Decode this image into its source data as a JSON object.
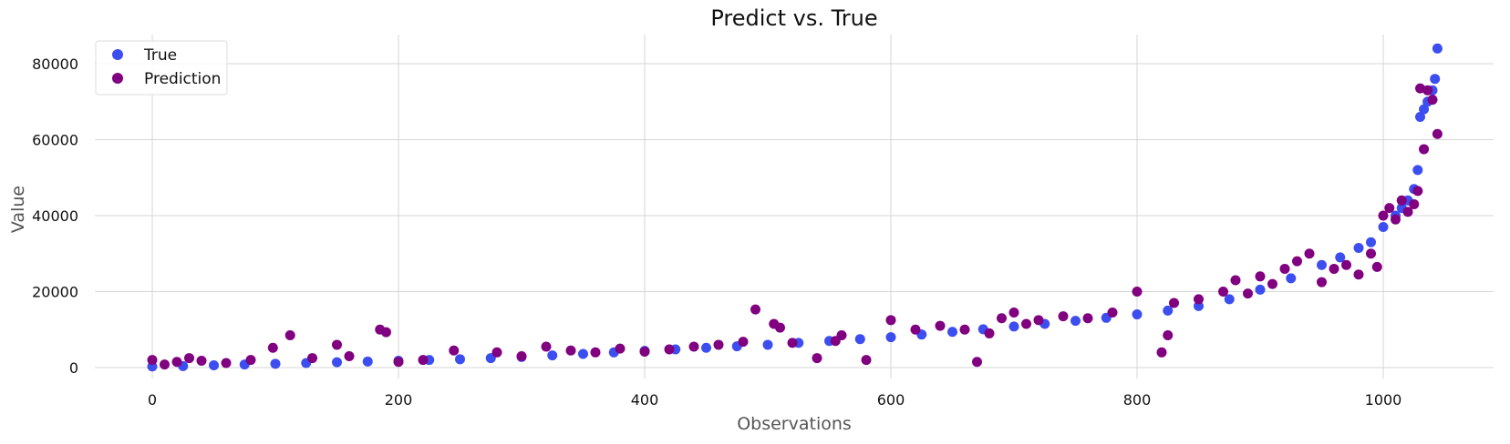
{
  "chart_data": {
    "type": "scatter",
    "title": "Predict vs. True",
    "xlabel": "Observations",
    "ylabel": "Value",
    "xlim": [
      -52,
      1094
    ],
    "ylim": [
      -3000,
      88000
    ],
    "x_ticks": [
      0,
      200,
      400,
      600,
      800,
      1000
    ],
    "y_ticks": [
      0,
      20000,
      40000,
      60000,
      80000
    ],
    "grid": true,
    "legend_position": "top-left",
    "series": [
      {
        "name": "True",
        "color": "#3c4ef0",
        "x": [
          0,
          25,
          50,
          75,
          100,
          125,
          150,
          175,
          200,
          225,
          250,
          275,
          300,
          325,
          350,
          375,
          400,
          425,
          450,
          475,
          500,
          525,
          550,
          575,
          600,
          625,
          650,
          675,
          700,
          725,
          750,
          775,
          800,
          825,
          850,
          875,
          900,
          925,
          950,
          965,
          980,
          990,
          1000,
          1010,
          1015,
          1020,
          1025,
          1028,
          1030,
          1033,
          1036,
          1040,
          1042,
          1044
        ],
        "y": [
          300,
          400,
          600,
          800,
          1000,
          1200,
          1400,
          1600,
          1800,
          2000,
          2200,
          2500,
          2800,
          3200,
          3600,
          4000,
          4400,
          4800,
          5200,
          5600,
          6000,
          6500,
          7000,
          7500,
          8000,
          8700,
          9400,
          10100,
          10800,
          11500,
          12300,
          13100,
          14000,
          15000,
          16200,
          18000,
          20500,
          23500,
          27000,
          29000,
          31500,
          33000,
          37000,
          40000,
          42000,
          44000,
          47000,
          52000,
          66000,
          68000,
          70000,
          73000,
          76000,
          84000
        ]
      },
      {
        "name": "Prediction",
        "color": "#800080",
        "x": [
          0,
          10,
          20,
          30,
          40,
          60,
          80,
          98,
          112,
          130,
          150,
          160,
          185,
          190,
          200,
          220,
          245,
          280,
          300,
          320,
          340,
          360,
          380,
          400,
          420,
          440,
          460,
          480,
          490,
          505,
          510,
          520,
          540,
          555,
          560,
          580,
          600,
          620,
          640,
          660,
          670,
          680,
          690,
          700,
          710,
          720,
          740,
          760,
          780,
          800,
          820,
          825,
          830,
          850,
          870,
          880,
          890,
          900,
          910,
          920,
          930,
          940,
          950,
          960,
          970,
          980,
          990,
          995,
          1000,
          1005,
          1010,
          1015,
          1020,
          1025,
          1028,
          1030,
          1033,
          1036,
          1040,
          1044
        ],
        "y": [
          2000,
          800,
          1500,
          2500,
          1800,
          1200,
          2000,
          5200,
          8500,
          2500,
          6000,
          3000,
          10000,
          9300,
          1500,
          2000,
          4500,
          4000,
          3000,
          5500,
          4500,
          4000,
          5000,
          4200,
          4800,
          5500,
          6000,
          6800,
          15300,
          11500,
          10500,
          6500,
          2500,
          7000,
          8500,
          2000,
          12500,
          10000,
          11000,
          10000,
          1500,
          9000,
          13000,
          14500,
          11500,
          12500,
          13500,
          13000,
          14500,
          20000,
          4000,
          8500,
          17000,
          18000,
          20000,
          23000,
          19500,
          24000,
          22000,
          26000,
          28000,
          30000,
          22500,
          26000,
          27000,
          24500,
          30000,
          26500,
          40000,
          42000,
          39000,
          44000,
          41000,
          43000,
          46500,
          73500,
          57500,
          73000,
          70500,
          61500
        ]
      }
    ]
  }
}
